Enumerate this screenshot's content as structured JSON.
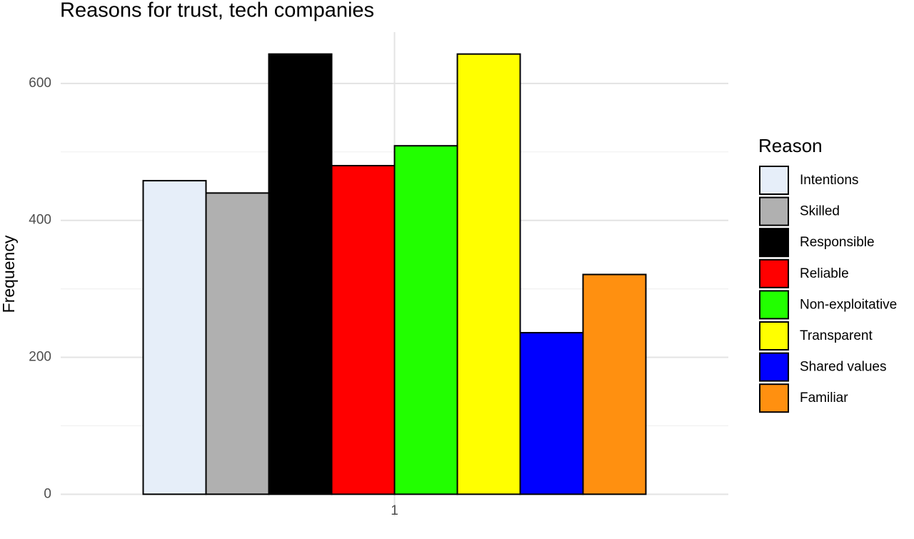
{
  "chart_data": {
    "type": "bar",
    "title": "Reasons for trust, tech companies",
    "y_label": "Frequency",
    "legend_title": "Reason",
    "categories": [
      "1"
    ],
    "series": [
      {
        "name": "Intentions",
        "color": "#e6eef9",
        "values": [
          458
        ]
      },
      {
        "name": "Skilled",
        "color": "#b0b0b0",
        "values": [
          440
        ]
      },
      {
        "name": "Responsible",
        "color": "#000000",
        "values": [
          643
        ]
      },
      {
        "name": "Reliable",
        "color": "#ff0000",
        "values": [
          480
        ]
      },
      {
        "name": "Non-exploitative",
        "color": "#22ff00",
        "values": [
          509
        ]
      },
      {
        "name": "Transparent",
        "color": "#ffff00",
        "values": [
          643
        ]
      },
      {
        "name": "Shared values",
        "color": "#0000ff",
        "values": [
          236
        ]
      },
      {
        "name": "Familiar",
        "color": "#ff9010",
        "values": [
          321
        ]
      }
    ],
    "ylim": [
      -32,
      675
    ],
    "yticks": [
      0,
      200,
      400,
      600
    ],
    "minor_yticks": [
      100,
      300,
      500
    ],
    "grid": true,
    "legend": "right"
  }
}
